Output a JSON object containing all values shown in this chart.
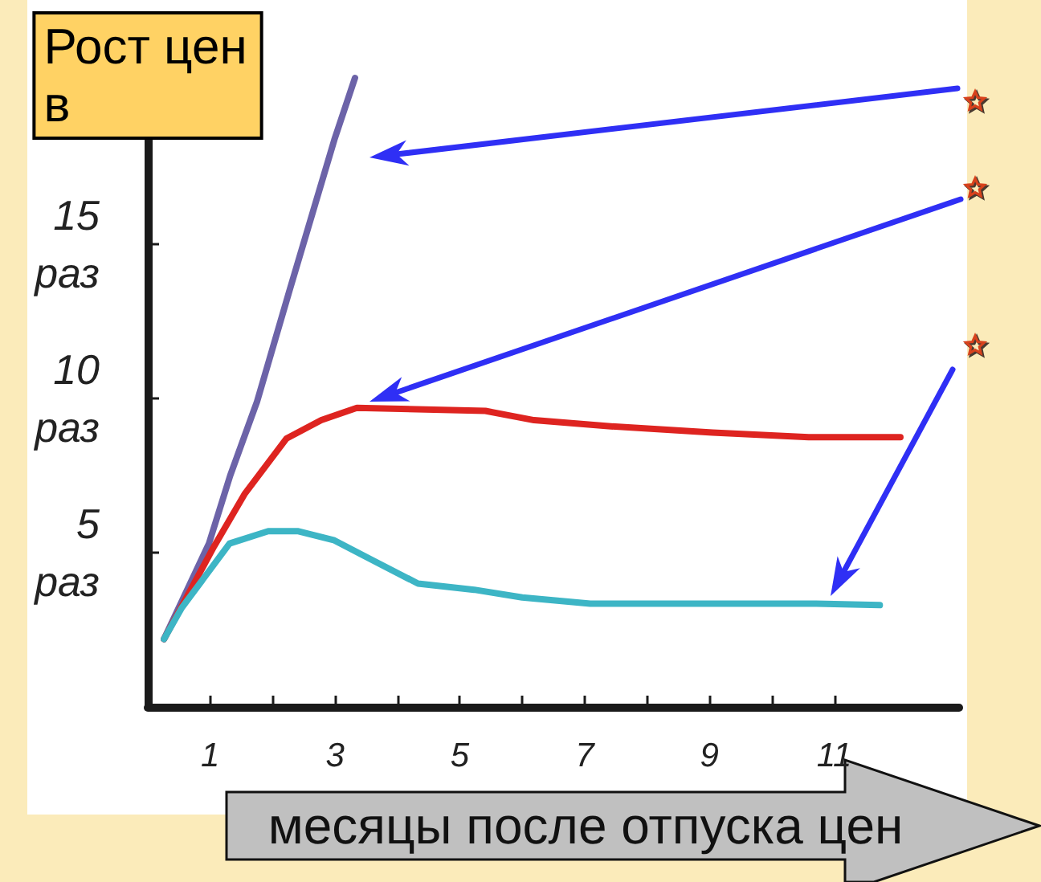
{
  "chart_data": {
    "type": "line",
    "ylabel": "Рост цен в",
    "xlabel": "месяцы после отпуска цен",
    "xlim": [
      0,
      13
    ],
    "xticks": [
      1,
      {
        "value": 2,
        "label": null
      },
      3,
      {
        "value": 4,
        "label": null
      },
      5,
      {
        "value": 6,
        "label": null
      },
      7,
      {
        "value": 8,
        "label": null
      },
      9,
      {
        "value": 10,
        "label": null
      },
      11
    ],
    "ylim": [
      0,
      21
    ],
    "yticks": [
      {
        "value": 5,
        "label": "5 раз"
      },
      {
        "value": 10,
        "label": "10 раз"
      },
      {
        "value": 15,
        "label": "15 раз"
      }
    ],
    "series": [
      {
        "color": "#6c63a8",
        "x": [
          0.26,
          0.98,
          1.32,
          1.75,
          2.27,
          2.99,
          3.32
        ],
        "values": [
          2.2,
          5.3,
          7.5,
          9.9,
          13.5,
          18.4,
          20.4
        ]
      },
      {
        "color": "#de2420",
        "x": [
          0.26,
          1.06,
          1.55,
          2.22,
          2.78,
          3.35,
          5.41,
          6.19,
          7.42,
          9.05,
          10.59,
          12.06
        ],
        "values": [
          2.2,
          5.2,
          6.9,
          8.7,
          9.3,
          9.7,
          9.6,
          9.3,
          9.1,
          8.9,
          8.75,
          8.75
        ]
      },
      {
        "color": "#3db5c5",
        "x": [
          0.26,
          0.54,
          1.31,
          1.93,
          2.4,
          2.99,
          3.56,
          4.33,
          5.23,
          6.0,
          7.09,
          8.84,
          10.64,
          11.73
        ],
        "values": [
          2.2,
          3.2,
          5.3,
          5.7,
          5.7,
          5.4,
          4.8,
          4.0,
          3.8,
          3.55,
          3.35,
          3.35,
          3.35,
          3.3
        ]
      }
    ]
  }
}
